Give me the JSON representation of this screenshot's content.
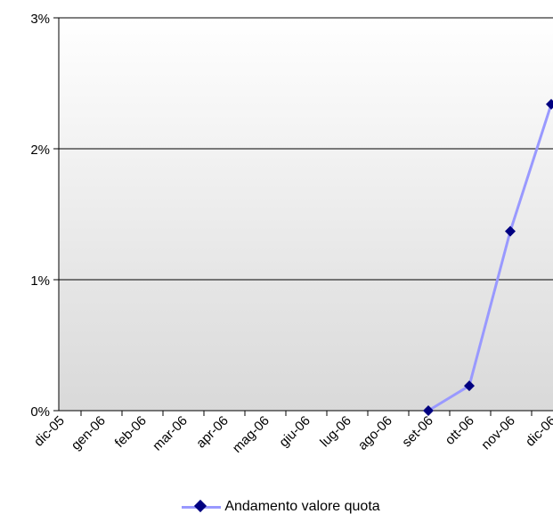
{
  "chart_data": {
    "type": "line",
    "title": "",
    "xlabel": "",
    "ylabel": "",
    "categories": [
      "dic-05",
      "gen-06",
      "feb-06",
      "mar-06",
      "apr-06",
      "mag-06",
      "giu-06",
      "lug-06",
      "ago-06",
      "set-06",
      "ott-06",
      "nov-06",
      "dic-06"
    ],
    "y_ticks": [
      "0%",
      "1%",
      "2%",
      "3%"
    ],
    "ylim": [
      0,
      0.03
    ],
    "grid": true,
    "legend_position": "bottom",
    "series": [
      {
        "name": "Andamento valore quota",
        "values": [
          null,
          null,
          null,
          null,
          null,
          null,
          null,
          null,
          null,
          0.0,
          0.0019,
          0.0137,
          0.0234
        ],
        "line_color": "#9999ff",
        "marker_color": "#000080",
        "marker": "diamond"
      }
    ],
    "plot_background": [
      "#ffffff",
      "#d9d9d9"
    ]
  }
}
